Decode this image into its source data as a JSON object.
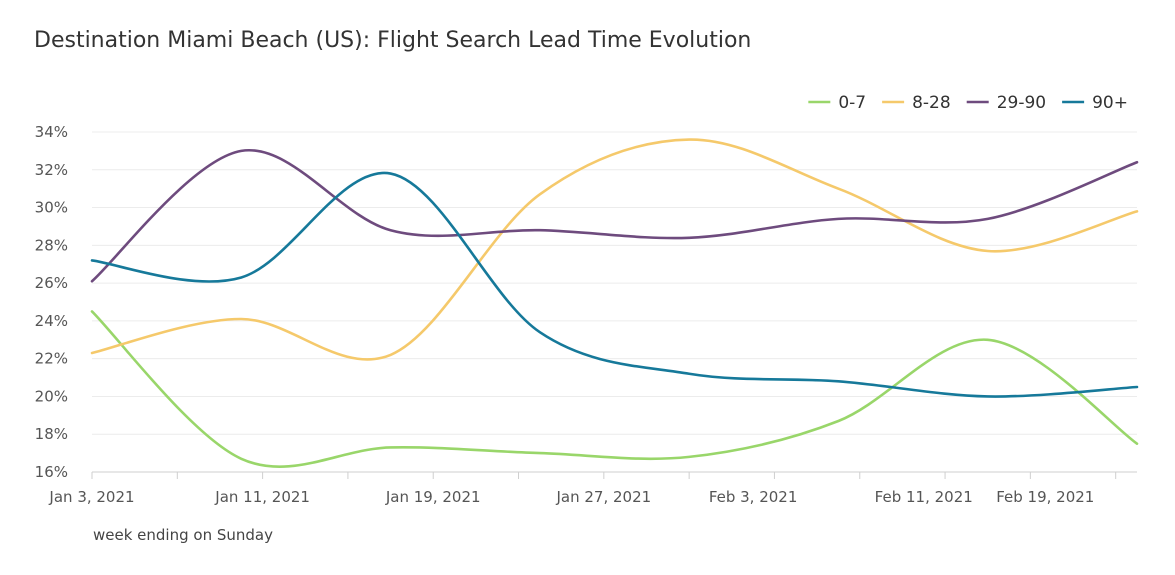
{
  "chart_data": {
    "type": "line",
    "title": "Destination Miami Beach (US): Flight Search Lead Time Evolution",
    "xlabel": "week ending on Sunday",
    "ylabel": "",
    "x": [
      "2021-01-03",
      "2021-01-10",
      "2021-01-17",
      "2021-01-24",
      "2021-01-31",
      "2021-02-07",
      "2021-02-14",
      "2021-02-21"
    ],
    "x_tick_labels": [
      "Jan 3, 2021",
      "Jan 11, 2021",
      "Jan 19, 2021",
      "Jan 27, 2021",
      "Feb 3, 2021",
      "Feb 11, 2021",
      "Feb 19, 2021"
    ],
    "y_tick_labels": [
      "16%",
      "18%",
      "20%",
      "22%",
      "24%",
      "26%",
      "28%",
      "30%",
      "32%",
      "34%"
    ],
    "ylim": [
      16,
      34
    ],
    "y_unit": "%",
    "grid": true,
    "legend_position": "top-right",
    "series": [
      {
        "name": "0-7",
        "color": "#99d66a",
        "values": [
          24.5,
          16.7,
          17.3,
          17.0,
          16.8,
          18.7,
          23.0,
          17.5
        ]
      },
      {
        "name": "8-28",
        "color": "#f5c96b",
        "values": [
          22.3,
          24.1,
          22.2,
          30.7,
          33.6,
          31.0,
          27.7,
          29.8
        ]
      },
      {
        "name": "29-90",
        "color": "#6e4b7e",
        "values": [
          26.1,
          33.0,
          28.8,
          28.8,
          28.4,
          29.4,
          29.4,
          32.4
        ]
      },
      {
        "name": "90+",
        "color": "#16799a",
        "values": [
          27.2,
          26.3,
          31.8,
          23.4,
          21.2,
          20.8,
          20.0,
          20.5
        ]
      }
    ]
  }
}
